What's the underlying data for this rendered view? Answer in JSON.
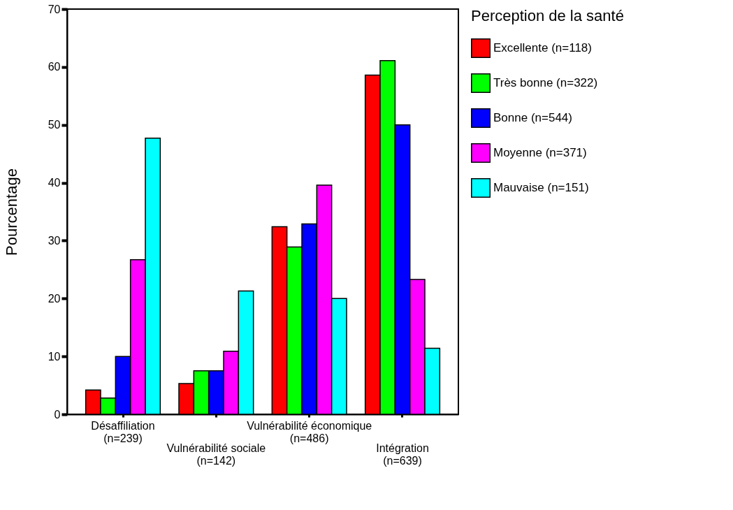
{
  "chart_data": {
    "type": "bar",
    "ylabel": "Pourcentage",
    "legend_title": "Perception de la santé",
    "categories": [
      "Désaffiliation\n(n=239)",
      "Vulnérabilité sociale\n(n=142)",
      "Vulnérabilité économique\n(n=486)",
      "Intégration\n(n=639)"
    ],
    "series": [
      {
        "name": "Excellente (n=118)",
        "color": "#ff0000",
        "values": [
          4.2,
          5.3,
          32.4,
          58.6
        ]
      },
      {
        "name": "Très bonne (n=322)",
        "color": "#00ff00",
        "values": [
          2.8,
          7.5,
          28.9,
          61.1
        ]
      },
      {
        "name": "Bonne (n=544)",
        "color": "#0000ff",
        "values": [
          10.0,
          7.5,
          32.9,
          50.0
        ]
      },
      {
        "name": "Moyenne (n=371)",
        "color": "#ff00ff",
        "values": [
          26.7,
          10.9,
          39.6,
          23.3
        ]
      },
      {
        "name": "Mauvaise (n=151)",
        "color": "#00ffff",
        "values": [
          47.7,
          21.3,
          20.0,
          11.4
        ]
      }
    ],
    "ylim": [
      0,
      70
    ],
    "yticks": [
      0,
      10,
      20,
      30,
      40,
      50,
      60,
      70
    ],
    "grid": false,
    "legend": "right"
  }
}
